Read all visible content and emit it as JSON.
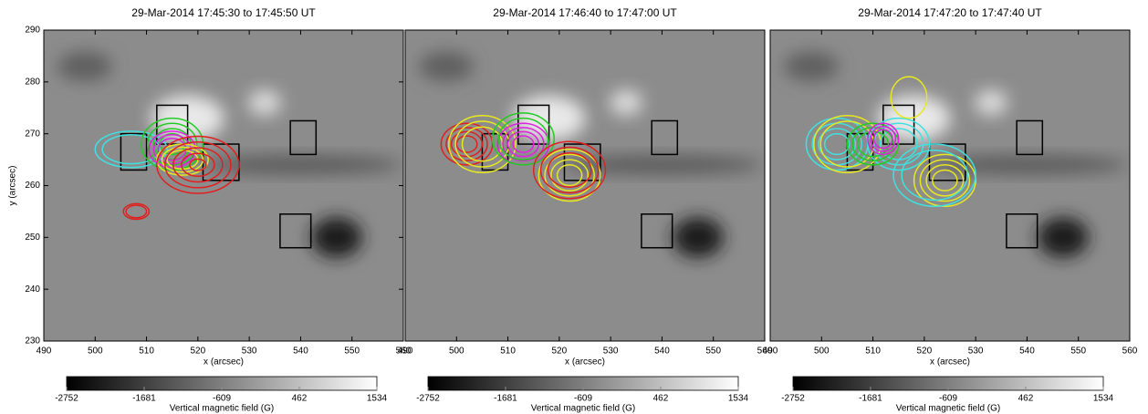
{
  "chart_data": [
    {
      "type": "image",
      "title": "29-Mar-2014 17:45:30 to 17:45:50 UT",
      "xlabel": "x (arcsec)",
      "ylabel": "y (arcsec)",
      "xlim": [
        490,
        560
      ],
      "xticks": [
        490,
        500,
        510,
        520,
        530,
        540,
        550,
        560
      ],
      "ylim": [
        230,
        290
      ],
      "yticks": [
        230,
        240,
        250,
        260,
        270,
        280,
        290
      ],
      "colorbar": {
        "label": "Vertical magnetic field (G)",
        "lim": [
          -2752,
          1534
        ],
        "ticks": [
          -2752,
          -1681,
          -609,
          462,
          1534
        ]
      }
    },
    {
      "type": "image",
      "title": "29-Mar-2014 17:46:40 to 17:47:00 UT",
      "xlabel": "x (arcsec)",
      "xlim": [
        490,
        560
      ],
      "xticks": [
        490,
        500,
        510,
        520,
        530,
        540,
        550,
        560
      ],
      "ylim": [
        230,
        290
      ],
      "colorbar": {
        "label": "Vertical magnetic field (G)",
        "lim": [
          -2752,
          1534
        ],
        "ticks": [
          -2752,
          -1681,
          -609,
          462,
          1534
        ]
      }
    },
    {
      "type": "image",
      "title": "29-Mar-2014 17:47:20 to 17:47:40 UT",
      "xlabel": "x (arcsec)",
      "xlim": [
        490,
        560
      ],
      "xticks": [
        490,
        500,
        510,
        520,
        530,
        540,
        550,
        560
      ],
      "ylim": [
        230,
        290
      ],
      "colorbar": {
        "label": "Vertical magnetic field (G)",
        "lim": [
          -2752,
          1534
        ],
        "ticks": [
          -2752,
          -1681,
          -609,
          462,
          1534
        ]
      }
    }
  ]
}
